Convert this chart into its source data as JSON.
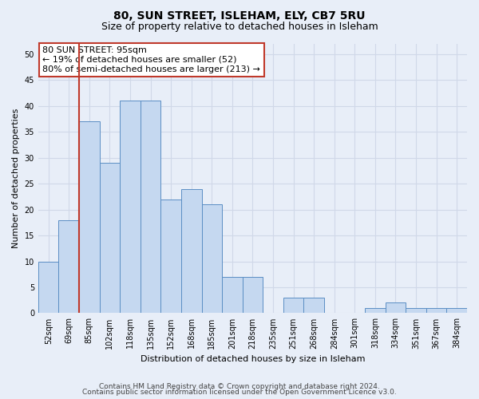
{
  "title1": "80, SUN STREET, ISLEHAM, ELY, CB7 5RU",
  "title2": "Size of property relative to detached houses in Isleham",
  "xlabel": "Distribution of detached houses by size in Isleham",
  "ylabel": "Number of detached properties",
  "footer1": "Contains HM Land Registry data © Crown copyright and database right 2024.",
  "footer2": "Contains public sector information licensed under the Open Government Licence v3.0.",
  "annotation_title": "80 SUN STREET: 95sqm",
  "annotation_line1": "← 19% of detached houses are smaller (52)",
  "annotation_line2": "80% of semi-detached houses are larger (213) →",
  "bar_categories": [
    "52sqm",
    "69sqm",
    "85sqm",
    "102sqm",
    "118sqm",
    "135sqm",
    "152sqm",
    "168sqm",
    "185sqm",
    "201sqm",
    "218sqm",
    "235sqm",
    "251sqm",
    "268sqm",
    "284sqm",
    "301sqm",
    "318sqm",
    "334sqm",
    "351sqm",
    "367sqm",
    "384sqm"
  ],
  "bar_values": [
    10,
    18,
    37,
    29,
    41,
    41,
    22,
    24,
    21,
    7,
    7,
    0,
    3,
    3,
    0,
    0,
    1,
    2,
    1,
    1,
    1
  ],
  "bar_color": "#c5d8f0",
  "bar_edge_color": "#5b8ec4",
  "vline_x": 1.5,
  "vline_color": "#c0392b",
  "ylim": [
    0,
    52
  ],
  "yticks": [
    0,
    5,
    10,
    15,
    20,
    25,
    30,
    35,
    40,
    45,
    50
  ],
  "bg_color": "#e8eef8",
  "grid_color": "#d0d8e8",
  "annotation_box_color": "#ffffff",
  "annotation_box_edge": "#c0392b",
  "title1_fontsize": 10,
  "title2_fontsize": 9,
  "annot_fontsize": 8,
  "axis_label_fontsize": 8,
  "tick_fontsize": 7,
  "footer_fontsize": 6.5
}
